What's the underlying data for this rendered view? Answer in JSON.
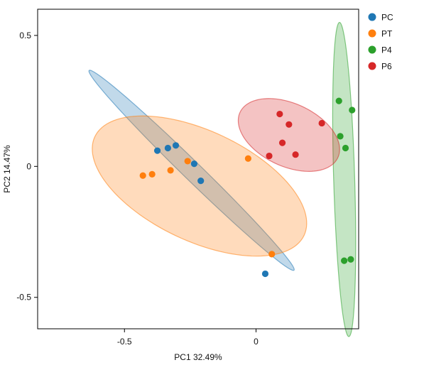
{
  "chart_data": {
    "type": "scatter",
    "title": "",
    "xlabel": "PC1 32.49%",
    "ylabel": "PC2 14.47%",
    "xlim": [
      -0.83,
      0.39
    ],
    "ylim": [
      -0.62,
      0.6
    ],
    "x_ticks": [
      {
        "value": -0.5,
        "label": "-0.5"
      },
      {
        "value": 0,
        "label": "0"
      }
    ],
    "y_ticks": [
      {
        "value": 0.5,
        "label": "0.5"
      },
      {
        "value": 0,
        "label": "0"
      },
      {
        "value": -0.5,
        "label": "-0.5"
      }
    ],
    "grid": false,
    "legend_position": "right-top",
    "series": [
      {
        "name": "PC",
        "color": "#1f77b4",
        "ellipse": {
          "cx": -0.245,
          "cy": -0.015,
          "rx": 0.545,
          "ry": 0.035,
          "angle_deg": -44.4
        },
        "points": [
          {
            "x": -0.375,
            "y": 0.06
          },
          {
            "x": -0.335,
            "y": 0.07
          },
          {
            "x": -0.305,
            "y": 0.08
          },
          {
            "x": -0.235,
            "y": 0.01
          },
          {
            "x": -0.21,
            "y": -0.055
          },
          {
            "x": 0.035,
            "y": -0.41
          }
        ]
      },
      {
        "name": "PT",
        "color": "#ff7f0e",
        "ellipse": {
          "cx": -0.215,
          "cy": -0.075,
          "rx": 0.44,
          "ry": 0.21,
          "angle_deg": -25.4
        },
        "points": [
          {
            "x": -0.43,
            "y": -0.035
          },
          {
            "x": -0.395,
            "y": -0.03
          },
          {
            "x": -0.325,
            "y": -0.015
          },
          {
            "x": -0.26,
            "y": 0.02
          },
          {
            "x": -0.03,
            "y": 0.03
          },
          {
            "x": 0.06,
            "y": -0.335
          }
        ]
      },
      {
        "name": "P4",
        "color": "#2ca02c",
        "ellipse": {
          "cx": 0.335,
          "cy": -0.05,
          "rx": 0.6,
          "ry": 0.04,
          "angle_deg": -88.3
        },
        "points": [
          {
            "x": 0.315,
            "y": 0.25
          },
          {
            "x": 0.365,
            "y": 0.215
          },
          {
            "x": 0.32,
            "y": 0.115
          },
          {
            "x": 0.34,
            "y": 0.07
          },
          {
            "x": 0.335,
            "y": -0.36
          },
          {
            "x": 0.36,
            "y": -0.355
          }
        ]
      },
      {
        "name": "P6",
        "color": "#d62728",
        "ellipse": {
          "cx": 0.125,
          "cy": 0.12,
          "rx": 0.205,
          "ry": 0.12,
          "angle_deg": -25
        },
        "points": [
          {
            "x": 0.09,
            "y": 0.2
          },
          {
            "x": 0.125,
            "y": 0.16
          },
          {
            "x": 0.25,
            "y": 0.165
          },
          {
            "x": 0.1,
            "y": 0.09
          },
          {
            "x": 0.05,
            "y": 0.04
          },
          {
            "x": 0.15,
            "y": 0.045
          }
        ]
      }
    ]
  }
}
